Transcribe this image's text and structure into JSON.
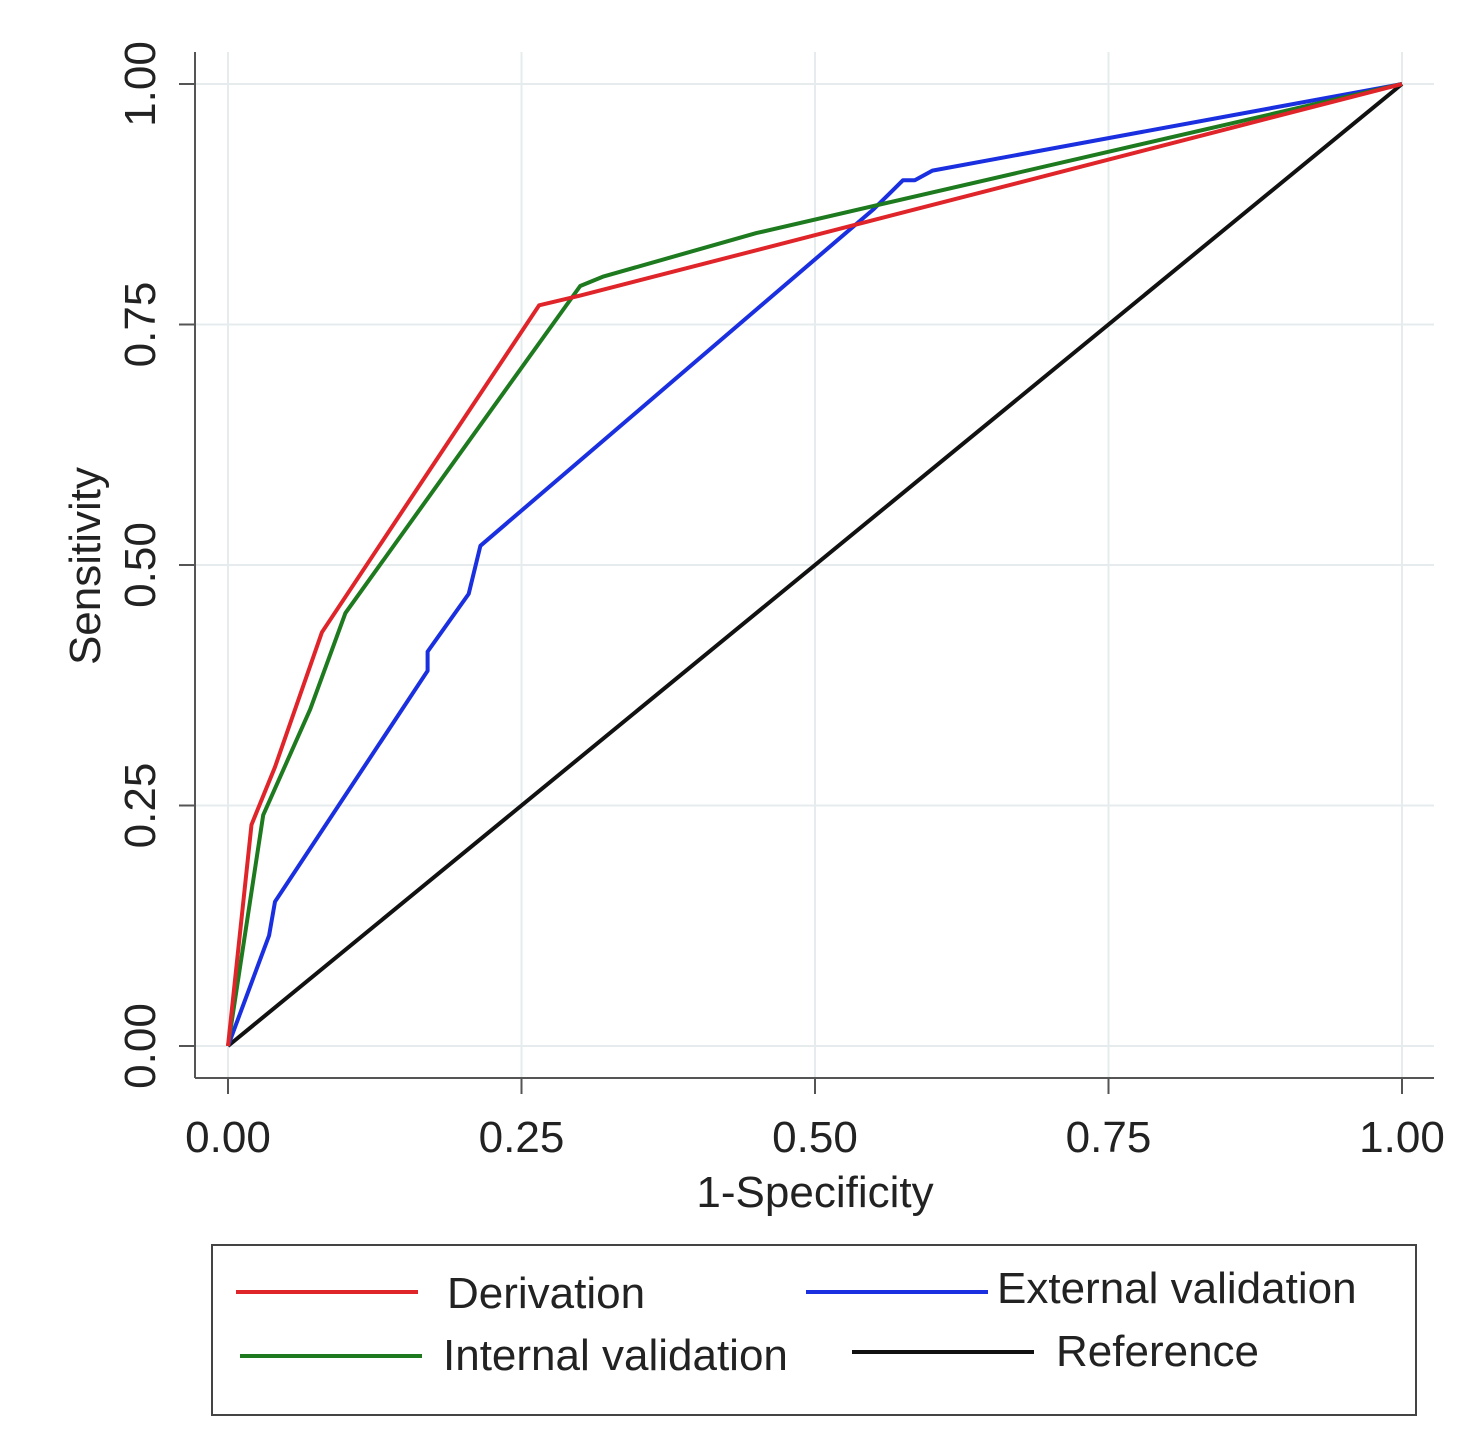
{
  "chart_data": {
    "type": "line",
    "xlabel": "1-Specificity",
    "ylabel": "Sensitivity",
    "xlim": [
      0,
      1
    ],
    "ylim": [
      0,
      1
    ],
    "xticks": [
      "0.00",
      "0.25",
      "0.50",
      "0.75",
      "1.00"
    ],
    "yticks": [
      "0.00",
      "0.25",
      "0.50",
      "0.75",
      "1.00"
    ],
    "grid": true,
    "legend_position": "bottom",
    "series": [
      {
        "name": "Derivation",
        "color": "#e0252a",
        "x": [
          0,
          0.02,
          0.04,
          0.08,
          0.265,
          0.3,
          1.0
        ],
        "y": [
          0,
          0.23,
          0.29,
          0.43,
          0.77,
          0.78,
          1.0
        ]
      },
      {
        "name": "Internal validation",
        "color": "#1e7a1e",
        "x": [
          0,
          0.03,
          0.07,
          0.1,
          0.3,
          0.32,
          0.45,
          1.0
        ],
        "y": [
          0,
          0.24,
          0.35,
          0.45,
          0.79,
          0.8,
          0.845,
          1.0
        ]
      },
      {
        "name": "External validation",
        "color": "#1a2fe0",
        "x": [
          0,
          0.035,
          0.04,
          0.17,
          0.17,
          0.205,
          0.215,
          0.55,
          0.575,
          0.585,
          0.6,
          1.0
        ],
        "y": [
          0,
          0.115,
          0.15,
          0.39,
          0.41,
          0.47,
          0.52,
          0.87,
          0.9,
          0.9,
          0.91,
          1.0
        ]
      },
      {
        "name": "Reference",
        "color": "#111111",
        "x": [
          0,
          1
        ],
        "y": [
          0,
          1
        ]
      }
    ]
  }
}
